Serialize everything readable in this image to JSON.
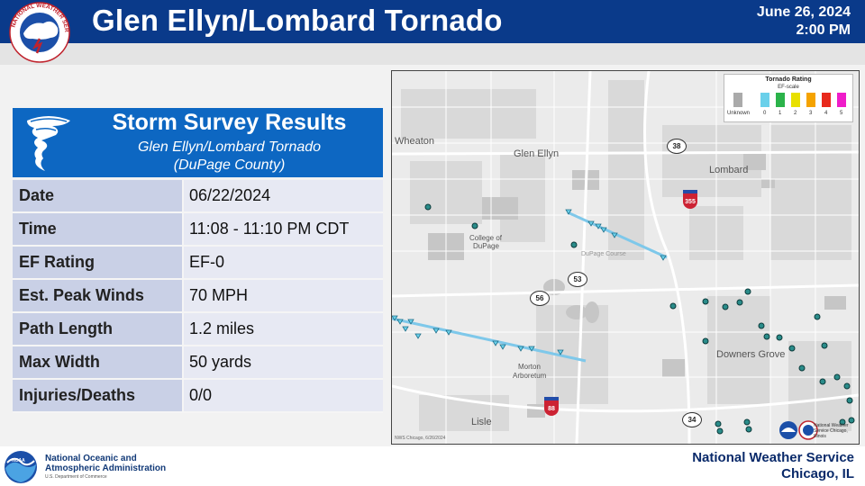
{
  "header": {
    "title": "Glen Ellyn/Lombard Tornado",
    "date": "June 26, 2024",
    "time": "2:00 PM",
    "logo_text": "NATIONAL WEATHER SERVICE"
  },
  "card": {
    "title": "Storm Survey Results",
    "subtitle1": "Glen Ellyn/Lombard Tornado",
    "subtitle2": "(DuPage County)",
    "rows": [
      {
        "label": "Date",
        "value": "06/22/2024"
      },
      {
        "label": "Time",
        "value": "11:08 - 11:10 PM CDT"
      },
      {
        "label": "EF Rating",
        "value": "EF-0"
      },
      {
        "label": "Est. Peak Winds",
        "value": "70 MPH"
      },
      {
        "label": "Path Length",
        "value": "1.2 miles"
      },
      {
        "label": "Max Width",
        "value": "50 yards"
      },
      {
        "label": "Injuries/Deaths",
        "value": "0/0"
      }
    ]
  },
  "map": {
    "legend": {
      "title": "Tornado Rating",
      "subtitle": "EF-scale",
      "items": [
        {
          "label": "Unknown",
          "color": "#aaaaaa"
        },
        {
          "label": "0",
          "color": "#6ad0ea"
        },
        {
          "label": "1",
          "color": "#2bb34a"
        },
        {
          "label": "2",
          "color": "#e8e000"
        },
        {
          "label": "3",
          "color": "#f5a300"
        },
        {
          "label": "4",
          "color": "#e8291c"
        },
        {
          "label": "5",
          "color": "#ef1cc9"
        }
      ]
    },
    "places": {
      "wheaton": "Wheaton",
      "glen_ellyn": "Glen Ellyn",
      "lombard": "Lombard",
      "college_dupage_1": "College of",
      "college_dupage_2": "DuPage",
      "dupage_course": "DuPage Course",
      "morton_1": "Morton",
      "morton_2": "Arboretum",
      "downers_grove": "Downers Grove",
      "lisle": "Lisle"
    },
    "highways": {
      "h38": "38",
      "h355": "355",
      "h53": "53",
      "h56": "56",
      "h88": "88",
      "h34": "34"
    },
    "credit": "NWS Chicago, 6/26/2024",
    "office_label": "National Weather Service Chicago, Illinois",
    "track_color": "#7ec8ea",
    "marker_color": "#2a8c8a"
  },
  "footer": {
    "agency1": "National Oceanic and",
    "agency2": "Atmospheric Administration",
    "dept": "U.S. Department of Commerce",
    "org": "National Weather Service",
    "city": "Chicago, IL"
  }
}
